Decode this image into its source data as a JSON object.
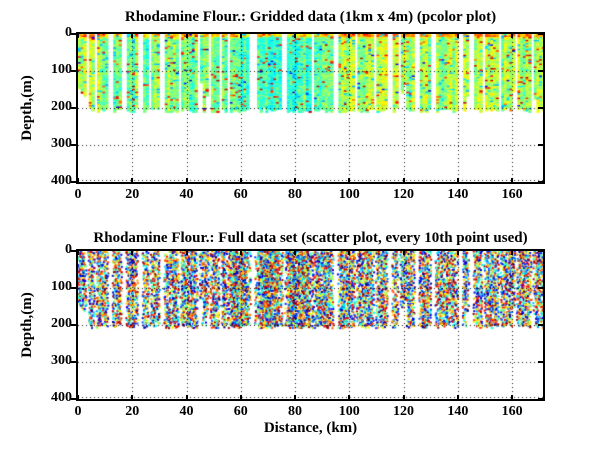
{
  "figure": {
    "background": "#ffffff",
    "text_color": "#000000",
    "axis_color": "#000000",
    "grid_line_style": "dotted"
  },
  "chart_data": [
    {
      "type": "heatmap",
      "title": "Rhodamine Flour.: Gridded data (1km x 4m) (pcolor plot)",
      "xlabel": "",
      "ylabel": "Depth,(m)",
      "x": {
        "min": 0,
        "max": 171.4,
        "ticks": [
          0,
          20,
          40,
          60,
          80,
          100,
          120,
          140,
          160
        ]
      },
      "y": {
        "min": 0,
        "max": 400,
        "ticks": [
          0,
          100,
          200,
          300,
          400
        ],
        "reversed": true,
        "unit": "m"
      },
      "grid": true,
      "colormap": "jet",
      "cell_size": {
        "x_km": 1,
        "z_m": 4
      },
      "data_depth_extent_m": [
        0,
        212
      ],
      "value_character": "mostly green-yellow mid values, warmer orange band near surface, cyan patches, scattered red specks, rare dark blue; white vertical stripes where casts are missing; most casts end near 200-212 m, leftmost casts end near 150-165 m"
    },
    {
      "type": "scatter",
      "title": "Rhodamine Flour.: Full data set (scatter plot, every 10th point used)",
      "xlabel": "Distance, (km)",
      "ylabel": "Depth,(m)",
      "x": {
        "min": 0,
        "max": 171.4,
        "ticks": [
          0,
          20,
          40,
          60,
          80,
          100,
          120,
          140,
          160
        ]
      },
      "y": {
        "min": 0,
        "max": 400,
        "ticks": [
          0,
          100,
          200,
          300,
          400
        ],
        "reversed": true,
        "unit": "m"
      },
      "grid": true,
      "colormap": "jet",
      "marker_px": 2,
      "data_depth_extent_m": [
        0,
        212
      ],
      "value_character": "dense vertical cast stripes of full-spectrum colored dots from surface to ~210 m; stripes merge into wide dense bands near 55-88 km; white gaps align with missing casts in the gridded plot"
    }
  ]
}
